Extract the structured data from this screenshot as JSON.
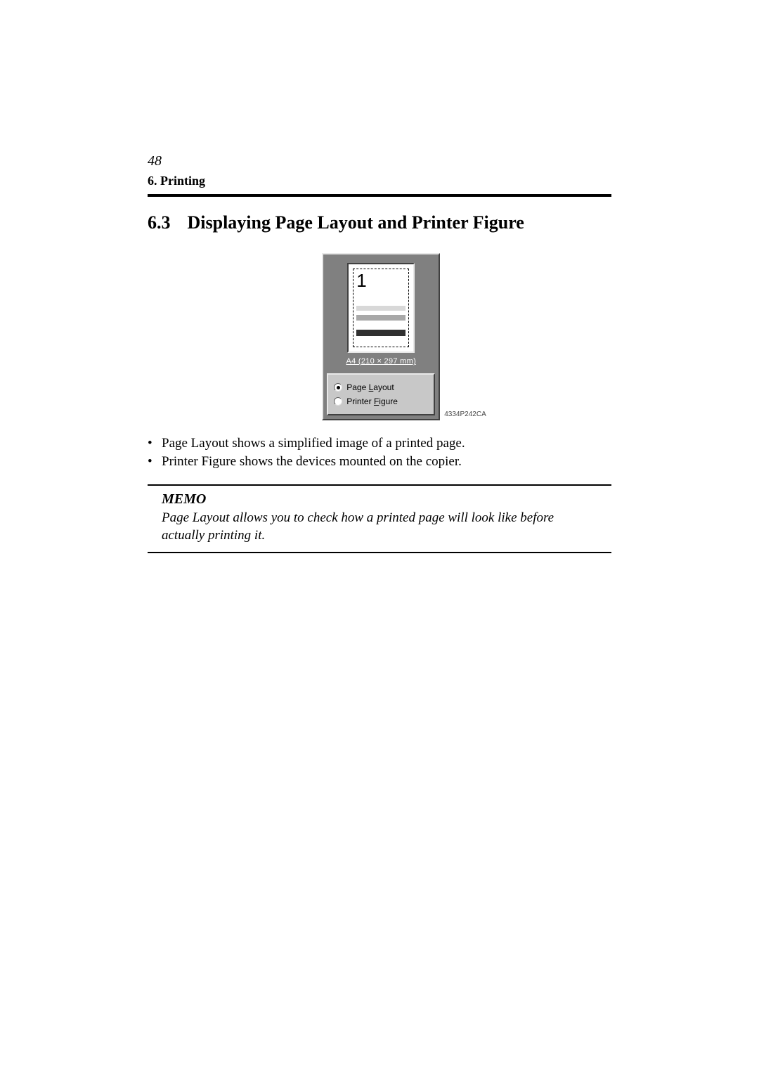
{
  "page": {
    "number": "48",
    "chapter": "6. Printing",
    "section_number": "6.3",
    "section_title": "Displaying Page Layout and Printer Figure"
  },
  "dialog": {
    "thumb_number": "1",
    "paper_size": "A4 (210 × 297 mm)",
    "radio1": {
      "prefix": "Page ",
      "hotkey": "L",
      "suffix": "ayout",
      "checked": true
    },
    "radio2": {
      "prefix": "Printer ",
      "hotkey": "F",
      "suffix": "igure",
      "checked": false
    },
    "figure_code": "4334P242CA"
  },
  "bullets": {
    "b1": "Page Layout shows a simplified image of a printed page.",
    "b2": "Printer Figure shows the devices mounted on the copier."
  },
  "memo": {
    "title": "MEMO",
    "text": "Page Layout allows you to check how a printed page will look like before actually printing it."
  },
  "colors": {
    "panel_bg": "#808080",
    "radio_bg": "#c8c8c8"
  }
}
